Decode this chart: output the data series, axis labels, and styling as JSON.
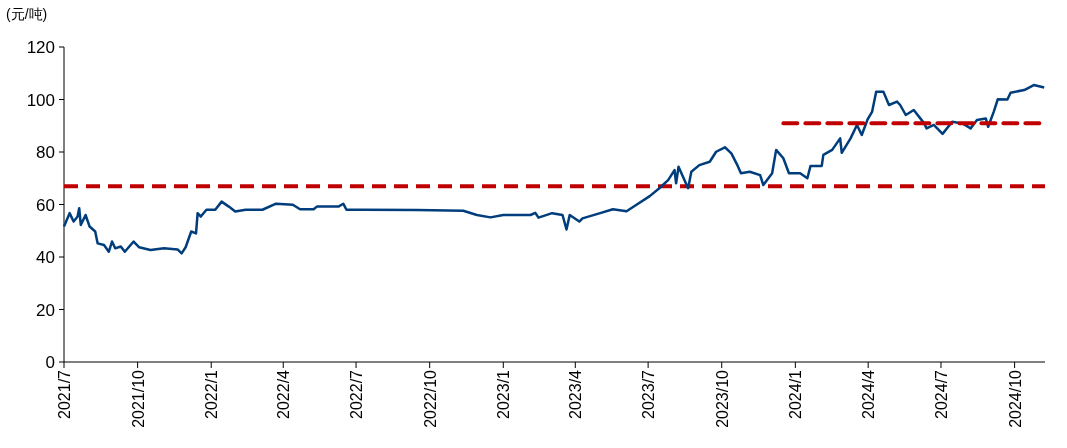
{
  "chart_data": {
    "type": "line",
    "ylabel": "(元/吨)",
    "ylim": [
      0,
      120
    ],
    "yticks": [
      0,
      20,
      40,
      60,
      80,
      100,
      120
    ],
    "xlim": [
      "2021-07-01",
      "2024-11-08"
    ],
    "xticks": [
      {
        "value": "2021-07-01",
        "label": "2021/7"
      },
      {
        "value": "2021-10-01",
        "label": "2021/10"
      },
      {
        "value": "2022-01-01",
        "label": "2022/1"
      },
      {
        "value": "2022-04-01",
        "label": "2022/4"
      },
      {
        "value": "2022-07-01",
        "label": "2022/7"
      },
      {
        "value": "2022-10-01",
        "label": "2022/10"
      },
      {
        "value": "2023-01-01",
        "label": "2023/1"
      },
      {
        "value": "2023-04-01",
        "label": "2023/4"
      },
      {
        "value": "2023-07-01",
        "label": "2023/7"
      },
      {
        "value": "2023-10-01",
        "label": "2023/10"
      },
      {
        "value": "2024-01-01",
        "label": "2024/1"
      },
      {
        "value": "2024-04-01",
        "label": "2024/4"
      },
      {
        "value": "2024-07-01",
        "label": "2024/7"
      },
      {
        "value": "2024-10-01",
        "label": "2024/10"
      }
    ],
    "ref_lines": [
      {
        "axis": "y",
        "value": 67,
        "color": "#c00000",
        "line_style": "dashed"
      }
    ],
    "series": [
      {
        "color": "#003d7c",
        "line_style": "solid",
        "x": [
          "2021-07-01",
          "2021-07-08",
          "2021-07-13",
          "2021-07-18",
          "2021-07-20",
          "2021-07-22",
          "2021-07-28",
          "2021-08-02",
          "2021-08-09",
          "2021-08-12",
          "2021-08-20",
          "2021-08-26",
          "2021-08-30",
          "2021-09-03",
          "2021-09-10",
          "2021-09-15",
          "2021-09-26",
          "2021-10-03",
          "2021-10-17",
          "2021-11-03",
          "2021-11-20",
          "2021-11-25",
          "2021-11-30",
          "2021-12-07",
          "2021-12-13",
          "2021-12-15",
          "2021-12-19",
          "2021-12-26",
          "2022-01-06",
          "2022-01-14",
          "2022-01-23",
          "2022-01-31",
          "2022-02-13",
          "2022-03-06",
          "2022-03-23",
          "2022-04-13",
          "2022-04-22",
          "2022-05-09",
          "2022-05-13",
          "2022-06-09",
          "2022-06-15",
          "2022-06-19",
          "2022-07-08",
          "2022-09-15",
          "2022-11-12",
          "2022-11-29",
          "2022-12-16",
          "2023-01-01",
          "2023-02-04",
          "2023-02-10",
          "2023-02-14",
          "2023-03-03",
          "2023-03-16",
          "2023-03-21",
          "2023-03-25",
          "2023-04-06",
          "2023-04-10",
          "2023-05-01",
          "2023-05-18",
          "2023-06-04",
          "2023-06-16",
          "2023-07-03",
          "2023-07-15",
          "2023-07-26",
          "2023-08-03",
          "2023-08-05",
          "2023-08-08",
          "2023-08-20",
          "2023-08-24",
          "2023-09-03",
          "2023-09-16",
          "2023-09-24",
          "2023-10-05",
          "2023-10-13",
          "2023-10-21",
          "2023-10-25",
          "2023-11-05",
          "2023-11-18",
          "2023-11-22",
          "2023-12-03",
          "2023-12-08",
          "2023-12-17",
          "2023-12-24",
          "2024-01-07",
          "2024-01-16",
          "2024-01-20",
          "2024-02-03",
          "2024-02-05",
          "2024-02-16",
          "2024-02-26",
          "2024-02-28",
          "2024-03-10",
          "2024-03-18",
          "2024-03-24",
          "2024-03-31",
          "2024-04-06",
          "2024-04-11",
          "2024-04-20",
          "2024-04-27",
          "2024-05-07",
          "2024-05-11",
          "2024-05-18",
          "2024-05-28",
          "2024-06-10",
          "2024-06-13",
          "2024-06-22",
          "2024-07-03",
          "2024-07-15",
          "2024-07-28",
          "2024-08-07",
          "2024-08-15",
          "2024-08-26",
          "2024-08-29",
          "2024-09-05",
          "2024-09-10",
          "2024-09-22",
          "2024-09-26",
          "2024-10-13",
          "2024-10-25",
          "2024-11-07"
        ],
        "values": [
          51.6,
          56.7,
          53.5,
          55.4,
          58.6,
          52.2,
          56,
          51.6,
          49.7,
          45.2,
          44.6,
          42,
          45.9,
          43.3,
          44,
          42,
          45.9,
          43.7,
          42.7,
          43.3,
          42.9,
          41.4,
          43.7,
          49.7,
          49,
          56.7,
          55.4,
          58,
          58,
          61.1,
          59.2,
          57.3,
          58,
          58,
          60.3,
          59.9,
          58.2,
          58.2,
          59.2,
          59.2,
          60.3,
          58,
          58,
          57.9,
          57.6,
          56,
          55.1,
          56,
          56,
          56.8,
          55,
          56.7,
          56,
          50.5,
          56,
          53.5,
          54.7,
          56.6,
          58.2,
          57.4,
          59.8,
          63.2,
          66.2,
          69.3,
          73.1,
          68.1,
          74.4,
          66.2,
          72.5,
          75,
          76.3,
          80.1,
          81.8,
          79.5,
          74.7,
          71.9,
          72.5,
          71.2,
          67.4,
          71.9,
          80.8,
          77.6,
          71.9,
          71.9,
          70,
          74.7,
          74.7,
          78.9,
          80.8,
          85.2,
          79.7,
          85.2,
          90.3,
          86.5,
          92.2,
          95.4,
          103,
          103,
          97.9,
          99.2,
          97.9,
          94.1,
          96,
          90.9,
          89,
          90.3,
          86.9,
          91.5,
          90.9,
          89,
          92.2,
          92.8,
          89.6,
          95.4,
          100.1,
          100,
          102.6,
          103.6,
          105.5,
          104.6
        ]
      },
      {
        "color": "#c00000",
        "line_style": "dashed",
        "x": [
          "2023-12-17",
          "2024-11-08"
        ],
        "values": [
          91,
          91
        ]
      }
    ]
  }
}
